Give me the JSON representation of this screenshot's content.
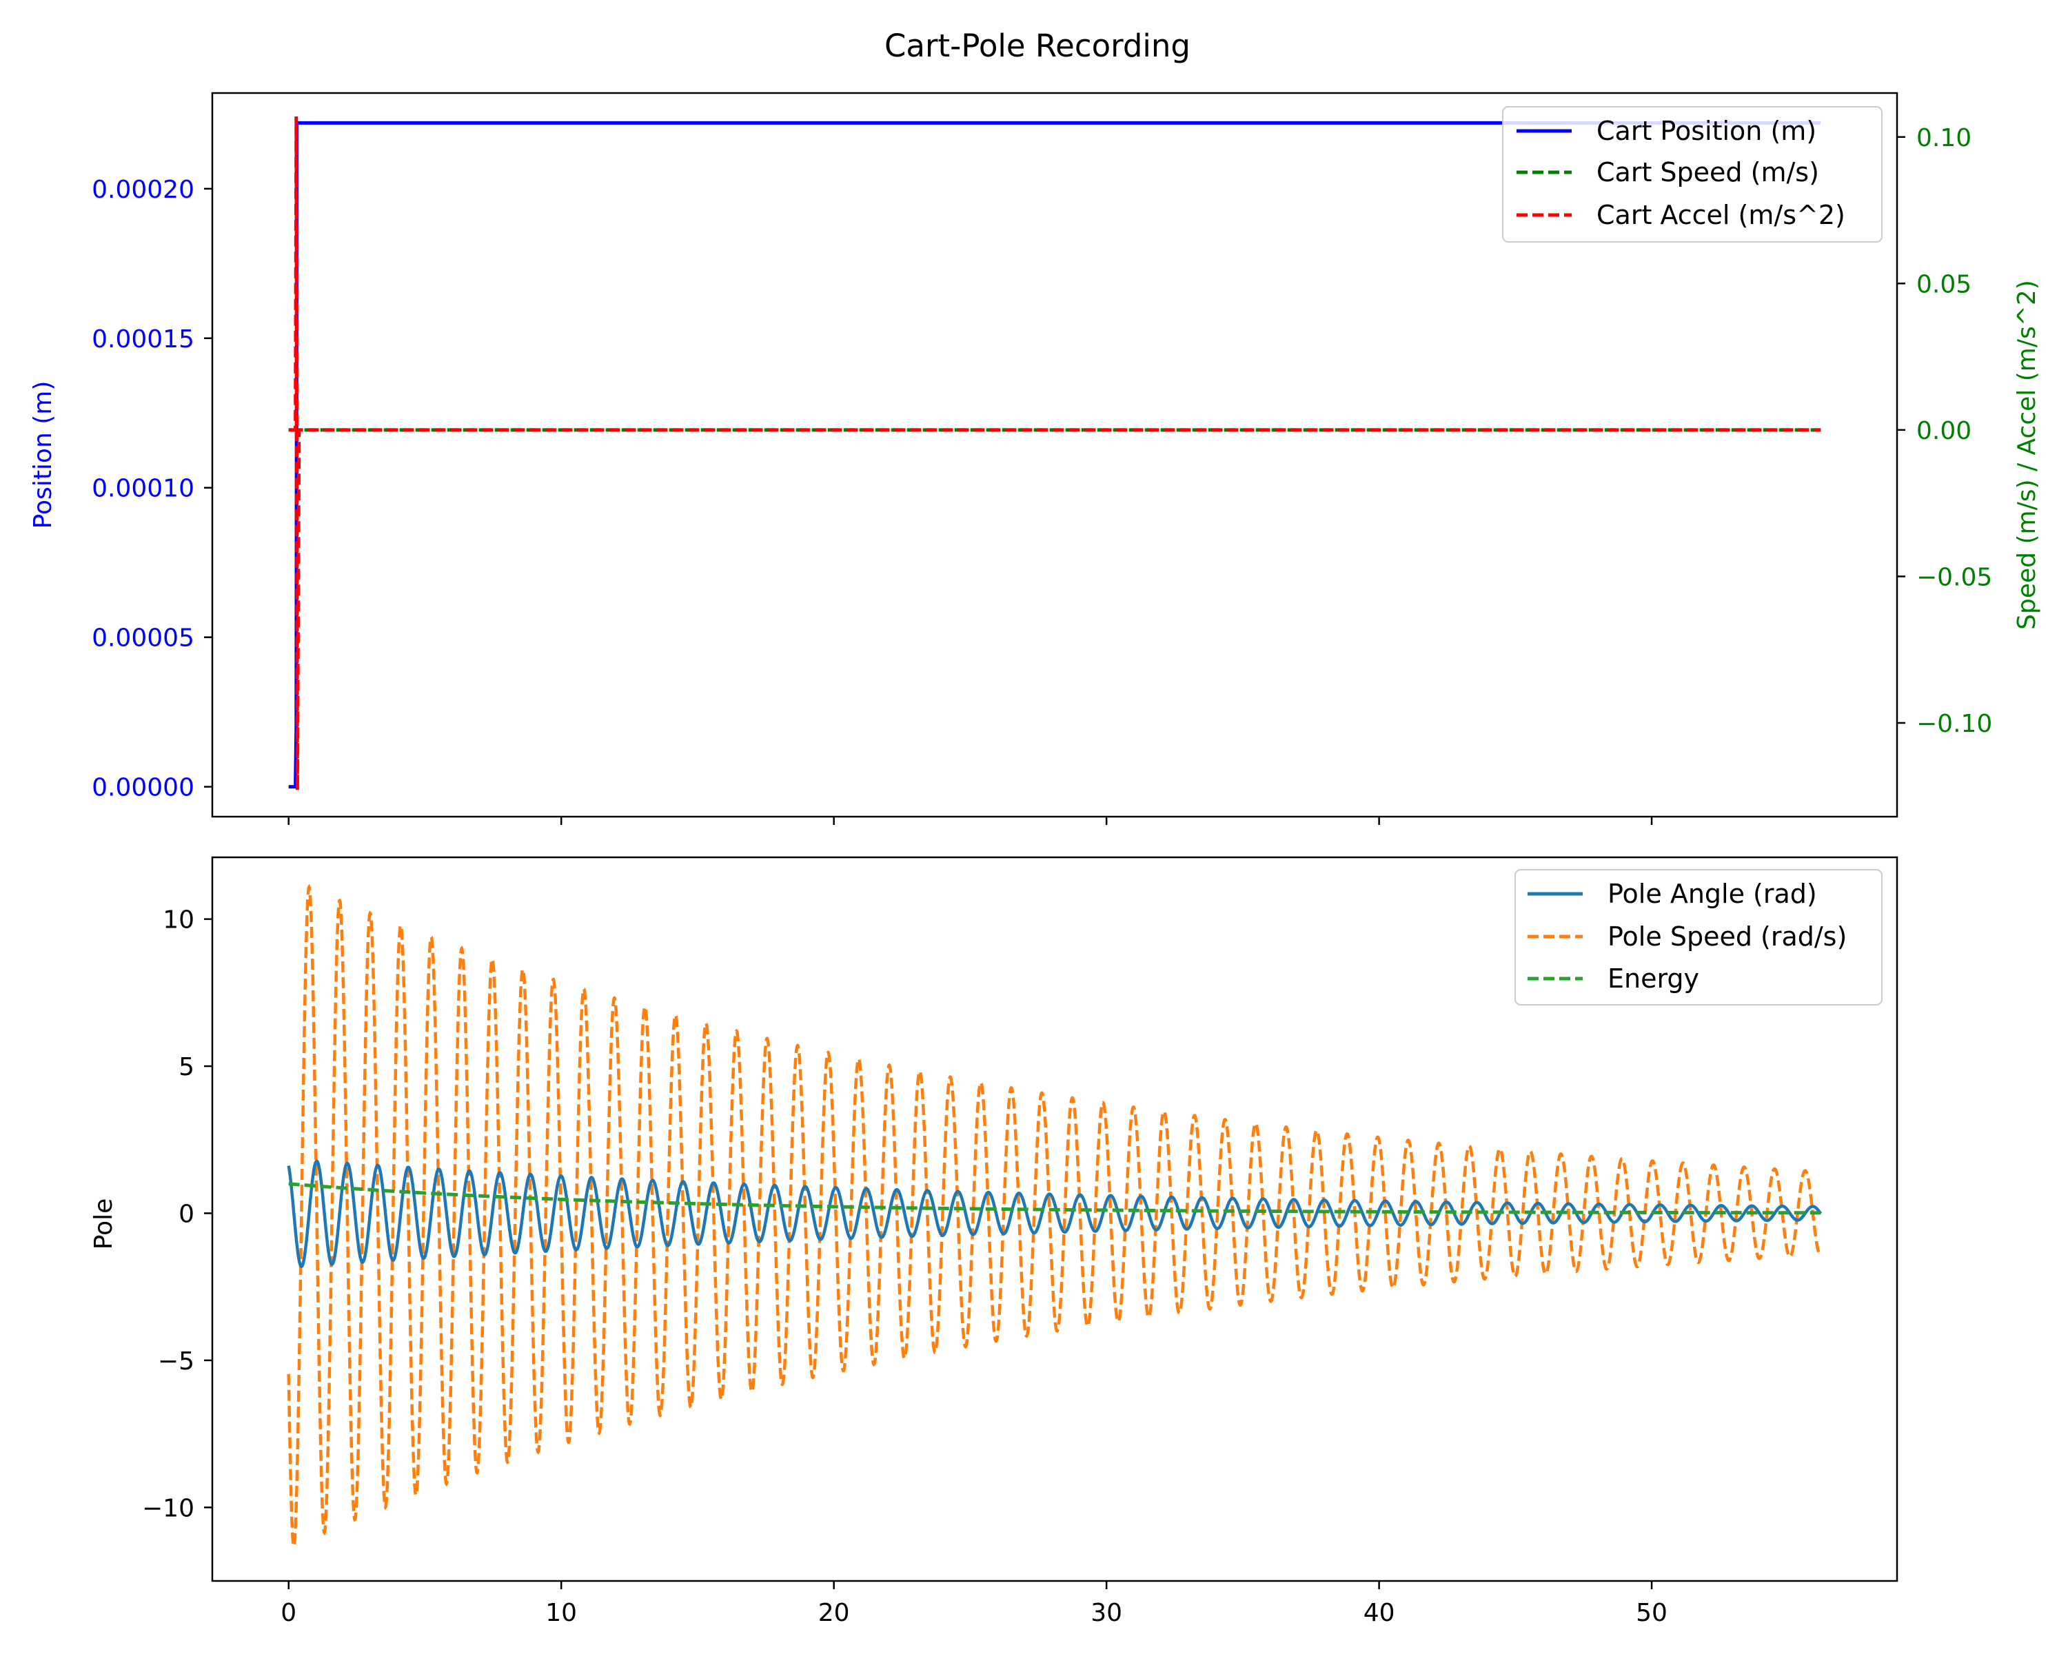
{
  "figure": {
    "title": "Cart-Pole Recording"
  },
  "chart_data": [
    {
      "type": "line",
      "panel": "top",
      "ylabel_left": "Position (m)",
      "ylabel_right": "Speed (m/s) / Accel (m/s^2)",
      "xlim": [
        -2.8,
        59
      ],
      "ylim_left": [
        -1e-05,
        0.000232
      ],
      "ylim_right": [
        -0.132,
        0.115
      ],
      "xticks": [
        0,
        10,
        20,
        30,
        40,
        50
      ],
      "yticks_left": [
        "0.00000",
        "0.00005",
        "0.00010",
        "0.00015",
        "0.00020"
      ],
      "yticks_left_values": [
        0,
        5e-05,
        0.0001,
        0.00015,
        0.0002
      ],
      "yticks_right": [
        "−0.10",
        "−0.05",
        "0.00",
        "0.05",
        "0.10"
      ],
      "yticks_right_values": [
        -0.1,
        -0.05,
        0.0,
        0.05,
        0.1
      ],
      "colors": {
        "left_axis": "#0000ff",
        "right_axis": "#008000"
      },
      "legend_position": "top-right",
      "series": [
        {
          "name": "Cart Position (m)",
          "axis": "left",
          "style": "solid",
          "color": "#0000ff",
          "points": [
            [
              0,
              0
            ],
            [
              0.25,
              0
            ],
            [
              0.28,
              2e-05
            ],
            [
              0.3,
              0.000222
            ],
            [
              56.2,
              0.000222
            ]
          ]
        },
        {
          "name": "Cart Speed (m/s)",
          "axis": "right",
          "style": "dashed",
          "color": "#008000",
          "points": [
            [
              0,
              0
            ],
            [
              56.2,
              0
            ]
          ]
        },
        {
          "name": "Cart Accel (m/s^2)",
          "axis": "right",
          "style": "dashed",
          "color": "#ff0000",
          "points": [
            [
              0,
              0
            ],
            [
              0.25,
              0
            ],
            [
              0.28,
              0.107
            ],
            [
              0.32,
              -0.123
            ],
            [
              0.38,
              0
            ],
            [
              56.2,
              0
            ]
          ]
        }
      ]
    },
    {
      "type": "line",
      "panel": "bottom",
      "ylabel": "Pole",
      "xlim": [
        -2.8,
        59
      ],
      "ylim": [
        -12.5,
        12.1
      ],
      "xticks": [
        0,
        10,
        20,
        30,
        40,
        50
      ],
      "yticks": [
        "−10",
        "−5",
        "0",
        "5",
        "10"
      ],
      "yticks_values": [
        -10,
        -5,
        0,
        5,
        10
      ],
      "legend_position": "top-right",
      "oscillation": {
        "period_s": 1.12,
        "decay_per_s": 0.0371,
        "t_start": 0,
        "t_end": 56.2
      },
      "series": [
        {
          "name": "Pole Angle (rad)",
          "style": "solid",
          "color": "#1f77b4",
          "peak_start": 2.0
        },
        {
          "name": "Pole Speed (rad/s)",
          "style": "dashed",
          "color": "#ff7f0e",
          "peak_start": 11.4
        },
        {
          "name": "Energy",
          "style": "dashed",
          "color": "#2ca02c",
          "start_value": 1.0
        }
      ]
    }
  ]
}
